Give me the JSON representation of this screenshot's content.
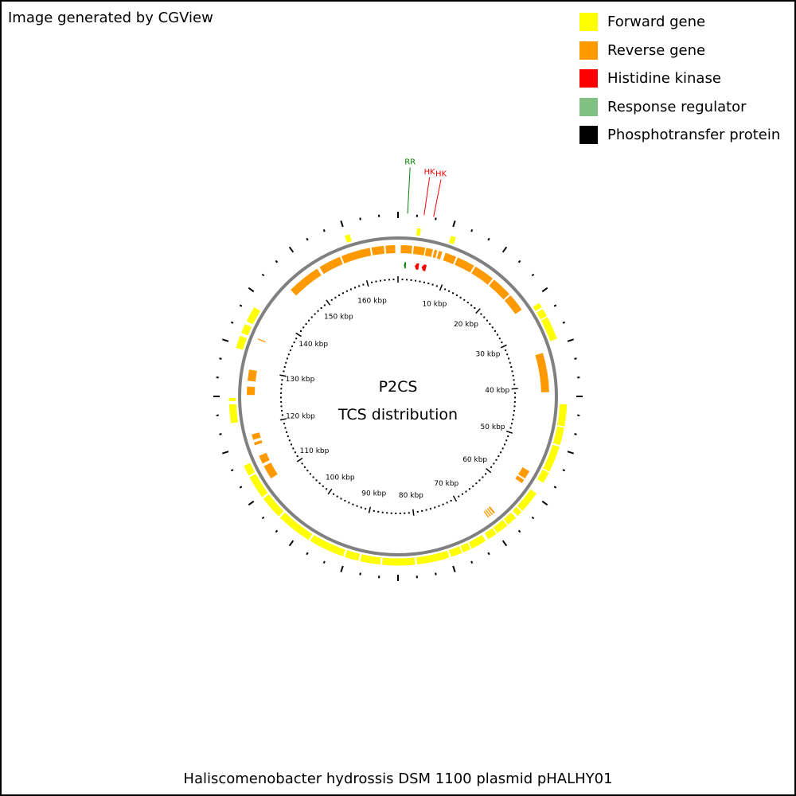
{
  "credit": "Image generated by CGView",
  "legend": [
    {
      "label": "Forward gene",
      "color": "#ffff00"
    },
    {
      "label": "Reverse gene",
      "color": "#ff9900"
    },
    {
      "label": "Histidine kinase",
      "color": "#ff0000"
    },
    {
      "label": "Response regulator",
      "color": "#80c080"
    },
    {
      "label": "Phosphotransfer protein",
      "color": "#000000"
    }
  ],
  "center": {
    "line1": "P2CS",
    "line2": "TCS distribution"
  },
  "footer_title": "Haliscomenobacter hydrossis DSM 1100 plasmid pHALHY01",
  "map": {
    "sequence_length_kbp": 167,
    "backbone_color": "#808080",
    "colors": {
      "forward": "#ffff00",
      "reverse": "#ff9900",
      "hk": "#ff0000",
      "rr": "#008000",
      "tick": "#000000"
    },
    "tick_labels": [
      "10 kbp",
      "20 kbp",
      "30 kbp",
      "40 kbp",
      "50 kbp",
      "60 kbp",
      "70 kbp",
      "80 kbp",
      "90 kbp",
      "100 kbp",
      "110 kbp",
      "120 kbp",
      "130 kbp",
      "140 kbp",
      "150 kbp",
      "160 kbp"
    ],
    "tick_label_positions_kbp": [
      10,
      20,
      30,
      40,
      50,
      60,
      70,
      80,
      90,
      100,
      110,
      120,
      130,
      140,
      150,
      160
    ],
    "forward_genes_kbp": [
      [
        3.0,
        3.6
      ],
      [
        8.5,
        9.3
      ],
      [
        26.2,
        27.0
      ],
      [
        27.3,
        28.6
      ],
      [
        28.8,
        32.5
      ],
      [
        43.0,
        46.5
      ],
      [
        46.7,
        49.5
      ],
      [
        49.8,
        54.0
      ],
      [
        54.2,
        56.0
      ],
      [
        58.0,
        61.5
      ],
      [
        61.7,
        62.6
      ],
      [
        63.0,
        64.6
      ],
      [
        64.8,
        66.8
      ],
      [
        67.0,
        68.5
      ],
      [
        69.0,
        71.5
      ],
      [
        71.7,
        73.0
      ],
      [
        73.2,
        75.0
      ],
      [
        75.3,
        80.5
      ],
      [
        80.8,
        86.0
      ],
      [
        86.3,
        89.5
      ],
      [
        89.8,
        92.0
      ],
      [
        92.3,
        98.0
      ],
      [
        98.3,
        104.0
      ],
      [
        104.3,
        108.0
      ],
      [
        108.3,
        112.0
      ],
      [
        112.3,
        114.0
      ],
      [
        121.0,
        124.0
      ],
      [
        124.5,
        125.0
      ],
      [
        133.0,
        135.0
      ],
      [
        135.5,
        137.0
      ],
      [
        137.5,
        140.0
      ],
      [
        158.5,
        159.3
      ]
    ],
    "reverse_genes_kbp": [
      [
        0.5,
        2.5
      ],
      [
        2.8,
        4.8
      ],
      [
        5.0,
        6.2
      ],
      [
        6.5,
        7.0
      ],
      [
        7.3,
        7.9
      ],
      [
        8.5,
        10.5
      ],
      [
        10.8,
        14.0
      ],
      [
        14.3,
        18.0
      ],
      [
        18.3,
        22.0
      ],
      [
        22.3,
        25.5
      ],
      [
        34.0,
        41.0
      ],
      [
        55.5,
        57.0
      ],
      [
        57.3,
        58.0
      ],
      [
        65.0,
        65.3
      ],
      [
        65.5,
        65.7
      ],
      [
        65.9,
        66.1
      ],
      [
        66.3,
        66.5
      ],
      [
        110.0,
        112.5
      ],
      [
        113.0,
        114.5
      ],
      [
        116.5,
        117.0
      ],
      [
        117.5,
        118.5
      ],
      [
        125.5,
        127.0
      ],
      [
        128.0,
        130.0
      ],
      [
        135.5,
        135.7
      ],
      [
        146.0,
        152.0
      ],
      [
        152.5,
        156.5
      ],
      [
        156.8,
        162.0
      ],
      [
        162.3,
        164.5
      ],
      [
        164.8,
        166.5
      ]
    ],
    "hk_kbp": [
      [
        3.4,
        4.2
      ],
      [
        4.8,
        5.7
      ]
    ],
    "rr_kbp": [
      [
        1.2,
        1.6
      ]
    ],
    "feature_labels": [
      {
        "text": "RR",
        "pos_kbp": 1.4,
        "type": "rr"
      },
      {
        "text": "HK",
        "pos_kbp": 3.8,
        "type": "hk"
      },
      {
        "text": "HK",
        "pos_kbp": 5.2,
        "type": "hk"
      }
    ]
  }
}
